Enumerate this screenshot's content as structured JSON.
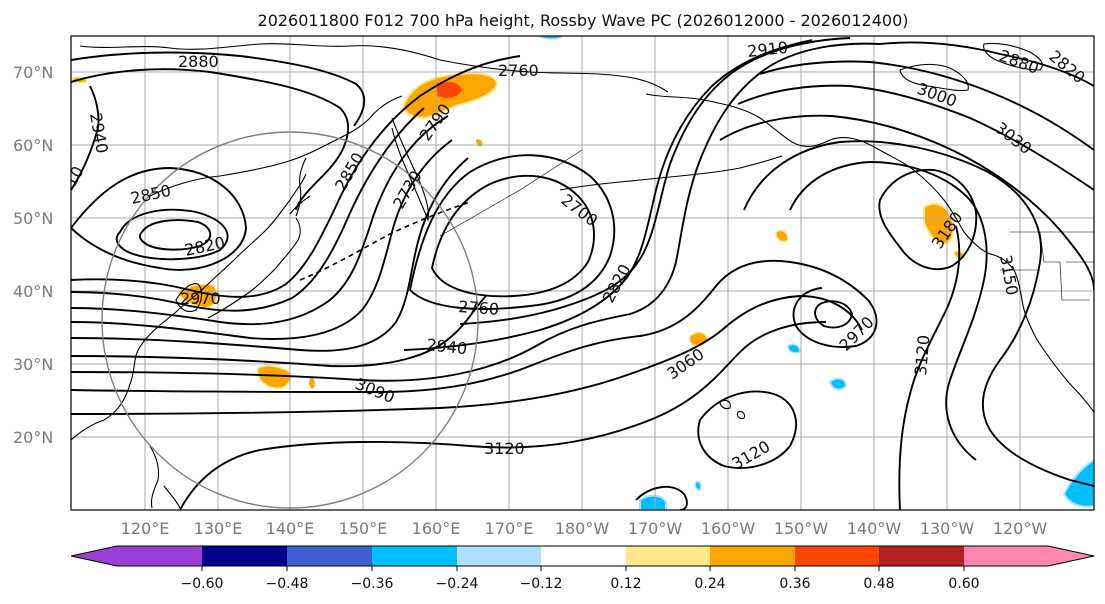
{
  "title": "2026011800 F012 700 hPa height, Rossby Wave PC (2026012000 - 2026012400)",
  "latitude_labels": [
    "70°N",
    "60°N",
    "50°N",
    "40°N",
    "30°N",
    "20°N"
  ],
  "longitude_labels": [
    "120°E",
    "130°E",
    "140°E",
    "150°E",
    "160°E",
    "170°E",
    "180°W",
    "170°W",
    "160°W",
    "150°W",
    "140°W",
    "130°W",
    "120°W"
  ],
  "colorbar": {
    "tick_labels": [
      "−0.60",
      "−0.48",
      "−0.36",
      "−0.24",
      "−0.12",
      "0.12",
      "0.24",
      "0.36",
      "0.48",
      "0.60"
    ],
    "colors": [
      "#9a3fd6",
      "#00008b",
      "#3f5fd0",
      "#00bfff",
      "#b0e0ff",
      "#ffffff",
      "#ffe88a",
      "#ffa500",
      "#ff4500",
      "#b22222",
      "#ff88b0"
    ]
  },
  "contour_labels": [
    {
      "text": "2880"
    },
    {
      "text": "2760"
    },
    {
      "text": "2910"
    },
    {
      "text": "2880"
    },
    {
      "text": "2820"
    },
    {
      "text": "3000"
    },
    {
      "text": "3030"
    },
    {
      "text": "2940"
    },
    {
      "text": "10"
    },
    {
      "text": "2850"
    },
    {
      "text": "2820"
    },
    {
      "text": "2970"
    },
    {
      "text": "2850"
    },
    {
      "text": "2790"
    },
    {
      "text": "2730"
    },
    {
      "text": "2700"
    },
    {
      "text": "2760"
    },
    {
      "text": "2820"
    },
    {
      "text": "2940"
    },
    {
      "text": "3090"
    },
    {
      "text": "3120"
    },
    {
      "text": "3060"
    },
    {
      "text": "2970"
    },
    {
      "text": "3120"
    },
    {
      "text": "3120"
    },
    {
      "text": "3180"
    },
    {
      "text": "3150"
    }
  ]
}
